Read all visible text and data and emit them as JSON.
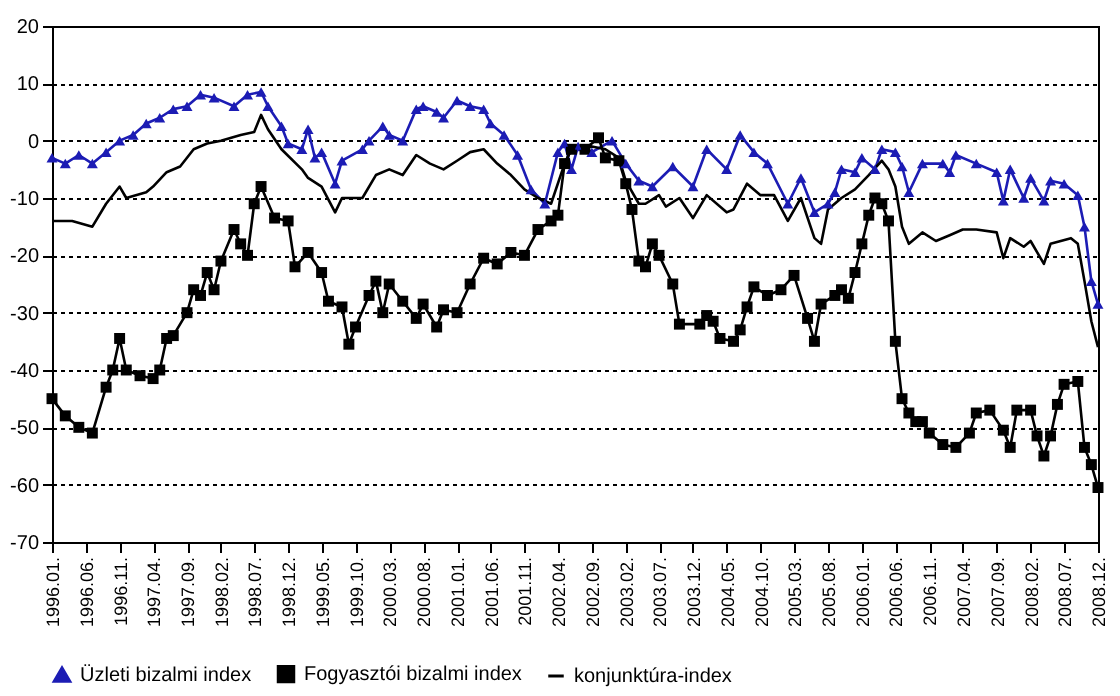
{
  "chart_data": {
    "type": "line",
    "ylim": [
      -70,
      20
    ],
    "yticks": [
      -70,
      -60,
      -50,
      -40,
      -30,
      -20,
      -10,
      0,
      10,
      20
    ],
    "xlim": [
      "1996-01",
      "2008-12"
    ],
    "xticks": [
      {
        "value": "1996-01",
        "label": "1996.01."
      },
      {
        "value": "1996-06",
        "label": "1996.06."
      },
      {
        "value": "1996-11",
        "label": "1996.11."
      },
      {
        "value": "1997-04",
        "label": "1997.04."
      },
      {
        "value": "1997-09",
        "label": "1997.09."
      },
      {
        "value": "1998-02",
        "label": "1998.02."
      },
      {
        "value": "1998-07",
        "label": "1998.07."
      },
      {
        "value": "1998-12",
        "label": "1998.12."
      },
      {
        "value": "1999-05",
        "label": "1999.05."
      },
      {
        "value": "1999-10",
        "label": "1999.10."
      },
      {
        "value": "2000-03",
        "label": "2000.03."
      },
      {
        "value": "2000-08",
        "label": "2000.08."
      },
      {
        "value": "2001-01",
        "label": "2001.01."
      },
      {
        "value": "2001-06",
        "label": "2001.06."
      },
      {
        "value": "2001-11",
        "label": "2001.11."
      },
      {
        "value": "2002-04",
        "label": "2002.04."
      },
      {
        "value": "2002-09",
        "label": "2002.09."
      },
      {
        "value": "2003-02",
        "label": "2003.02."
      },
      {
        "value": "2003-07",
        "label": "2003.07."
      },
      {
        "value": "2003-12",
        "label": "2003.12."
      },
      {
        "value": "2004-05",
        "label": "2004.05."
      },
      {
        "value": "2004-10",
        "label": "2004.10."
      },
      {
        "value": "2005-03",
        "label": "2005.03."
      },
      {
        "value": "2005-08",
        "label": "2005.08."
      },
      {
        "value": "2006-01",
        "label": "2006.01."
      },
      {
        "value": "2006-06",
        "label": "2006.06."
      },
      {
        "value": "2006-11",
        "label": "2006.11."
      },
      {
        "value": "2007-04",
        "label": "2007.04."
      },
      {
        "value": "2007-09",
        "label": "2007.09."
      },
      {
        "value": "2008-02",
        "label": "2008.02."
      },
      {
        "value": "2008-07",
        "label": "2008.07."
      },
      {
        "value": "2008-12",
        "label": "2008.12."
      }
    ],
    "grid": "y",
    "legend": "bottom",
    "line_style": "solid",
    "series": [
      {
        "name": "Üzleti bizalmi index",
        "color": "#1c1cb4",
        "marker": "triangle",
        "x": [
          "1996-01",
          "1996-03",
          "1996-05",
          "1996-07",
          "1996-09",
          "1996-11",
          "1997-01",
          "1997-03",
          "1997-05",
          "1997-07",
          "1997-09",
          "1997-11",
          "1998-01",
          "1998-04",
          "1998-06",
          "1998-08",
          "1998-09",
          "1998-11",
          "1998-12",
          "1999-02",
          "1999-03",
          "1999-04",
          "1999-05",
          "1999-07",
          "1999-08",
          "1999-11",
          "1999-12",
          "2000-02",
          "2000-03",
          "2000-05",
          "2000-07",
          "2000-08",
          "2000-10",
          "2000-11",
          "2001-01",
          "2001-03",
          "2001-05",
          "2001-06",
          "2001-08",
          "2001-10",
          "2001-12",
          "2002-02",
          "2002-04",
          "2002-05",
          "2002-06",
          "2002-07",
          "2002-09",
          "2002-12",
          "2003-02",
          "2003-04",
          "2003-06",
          "2003-09",
          "2003-12",
          "2004-02",
          "2004-05",
          "2004-07",
          "2004-09",
          "2004-11",
          "2005-02",
          "2005-04",
          "2005-06",
          "2005-08",
          "2005-09",
          "2005-10",
          "2005-12",
          "2006-01",
          "2006-03",
          "2006-04",
          "2006-06",
          "2006-07",
          "2006-08",
          "2006-10",
          "2007-01",
          "2007-02",
          "2007-03",
          "2007-06",
          "2007-09",
          "2007-10",
          "2007-11",
          "2008-01",
          "2008-02",
          "2008-04",
          "2008-05",
          "2008-07",
          "2008-09",
          "2008-10",
          "2008-11",
          "2008-12"
        ],
        "values": [
          -3,
          -4,
          -2.5,
          -4,
          -2,
          0,
          1,
          3,
          4,
          5.5,
          6,
          8,
          7.5,
          6,
          8,
          8.5,
          6,
          2.5,
          -0.5,
          -1.5,
          2,
          -3,
          -2,
          -7.5,
          -3.5,
          -1.5,
          0,
          2.5,
          1,
          0,
          5.5,
          6,
          5,
          4,
          7,
          6,
          5.5,
          3,
          1,
          -2.5,
          -8.5,
          -11,
          -2,
          -0.5,
          -5,
          -1,
          -2,
          0,
          -4,
          -7,
          -8,
          -4.5,
          -8,
          -1.5,
          -5,
          1,
          -2,
          -4,
          -11,
          -6.5,
          -12.5,
          -11,
          -9,
          -5,
          -5.5,
          -3,
          -5,
          -1.5,
          -2,
          -4.5,
          -9,
          -4,
          -4,
          -5.5,
          -2.5,
          -4,
          -5.5,
          -10.5,
          -5,
          -10,
          -6.5,
          -10.5,
          -7,
          -7.5,
          -9.5,
          -15,
          -24.5,
          -28.5
        ]
      },
      {
        "name": "Fogyasztói bizalmi index",
        "color": "#000000",
        "marker": "square",
        "x": [
          "1996-01",
          "1996-03",
          "1996-05",
          "1996-07",
          "1996-09",
          "1996-10",
          "1996-11",
          "1996-12",
          "1997-02",
          "1997-04",
          "1997-05",
          "1997-06",
          "1997-07",
          "1997-09",
          "1997-10",
          "1997-11",
          "1997-12",
          "1998-01",
          "1998-02",
          "1998-04",
          "1998-05",
          "1998-06",
          "1998-07",
          "1998-08",
          "1998-10",
          "1998-12",
          "1999-01",
          "1999-03",
          "1999-05",
          "1999-06",
          "1999-08",
          "1999-09",
          "1999-10",
          "1999-12",
          "2000-01",
          "2000-02",
          "2000-03",
          "2000-05",
          "2000-07",
          "2000-08",
          "2000-10",
          "2000-11",
          "2001-01",
          "2001-03",
          "2001-05",
          "2001-07",
          "2001-09",
          "2001-11",
          "2002-01",
          "2002-03",
          "2002-04",
          "2002-05",
          "2002-06",
          "2002-08",
          "2002-10",
          "2002-11",
          "2003-01",
          "2003-02",
          "2003-03",
          "2003-04",
          "2003-05",
          "2003-06",
          "2003-07",
          "2003-09",
          "2003-10",
          "2004-01",
          "2004-02",
          "2004-03",
          "2004-04",
          "2004-06",
          "2004-07",
          "2004-08",
          "2004-09",
          "2004-11",
          "2005-01",
          "2005-03",
          "2005-05",
          "2005-06",
          "2005-07",
          "2005-09",
          "2005-10",
          "2005-11",
          "2005-12",
          "2006-01",
          "2006-02",
          "2006-03",
          "2006-04",
          "2006-05",
          "2006-06",
          "2006-07",
          "2006-08",
          "2006-09",
          "2006-10",
          "2006-11",
          "2007-01",
          "2007-03",
          "2007-05",
          "2007-06",
          "2007-08",
          "2007-10",
          "2007-11",
          "2007-12",
          "2008-02",
          "2008-03",
          "2008-04",
          "2008-05",
          "2008-06",
          "2008-07",
          "2008-09",
          "2008-10",
          "2008-11",
          "2008-12"
        ],
        "values": [
          -45,
          -48,
          -50,
          -51,
          -43,
          -40,
          -34.5,
          -40,
          -41,
          -41.5,
          -40,
          -34.5,
          -34,
          -30,
          -26,
          -27,
          -23,
          -26,
          -21,
          -15.5,
          -18,
          -20,
          -11,
          -8,
          -13.5,
          -14,
          -22,
          -19.5,
          -23,
          -28,
          -29,
          -35.5,
          -32.5,
          -27,
          -24.5,
          -30,
          -25,
          -28,
          -31,
          -28.5,
          -32.5,
          -29.5,
          -30,
          -25,
          -20.5,
          -21.5,
          -19.5,
          -20,
          -15.5,
          -14,
          -13,
          -4,
          -1.5,
          -1.5,
          0.5,
          -3,
          -3.5,
          -7.5,
          -12,
          -21,
          -22,
          -18,
          -20,
          -25,
          -32,
          -32,
          -30.5,
          -31.5,
          -34.5,
          -35,
          -33,
          -29,
          -25.5,
          -27,
          -26,
          -23.5,
          -31,
          -35,
          -28.5,
          -27,
          -26,
          -27.5,
          -23,
          -18,
          -13,
          -10,
          -11,
          -14,
          -35,
          -45,
          -47.5,
          -49,
          -49,
          -51,
          -53,
          -53.5,
          -51,
          -47.5,
          -47,
          -50.5,
          -53.5,
          -47,
          -47,
          -51.5,
          -55,
          -51.5,
          -46,
          -42.5,
          -42,
          -53.5,
          -56.5,
          -60.5
        ]
      },
      {
        "name": "konjunktúra-index",
        "color": "#000000",
        "marker": "none",
        "x": [
          "1996-01",
          "1996-04",
          "1996-07",
          "1996-09",
          "1996-11",
          "1996-12",
          "1997-03",
          "1997-04",
          "1997-06",
          "1997-08",
          "1997-10",
          "1997-12",
          "1998-02",
          "1998-05",
          "1998-07",
          "1998-08",
          "1998-09",
          "1998-11",
          "1999-02",
          "1999-03",
          "1999-05",
          "1999-07",
          "1999-08",
          "1999-11",
          "2000-01",
          "2000-03",
          "2000-05",
          "2000-07",
          "2000-09",
          "2000-11",
          "2001-01",
          "2001-03",
          "2001-05",
          "2001-07",
          "2001-09",
          "2001-11",
          "2002-01",
          "2002-03",
          "2002-05",
          "2002-06",
          "2002-09",
          "2002-11",
          "2003-01",
          "2003-02",
          "2003-04",
          "2003-05",
          "2003-07",
          "2003-08",
          "2003-10",
          "2003-12",
          "2004-02",
          "2004-05",
          "2004-06",
          "2004-08",
          "2004-10",
          "2004-12",
          "2005-02",
          "2005-04",
          "2005-06",
          "2005-07",
          "2005-08",
          "2005-10",
          "2005-12",
          "2006-02",
          "2006-04",
          "2006-05",
          "2006-06",
          "2006-07",
          "2006-08",
          "2006-10",
          "2006-12",
          "2007-02",
          "2007-04",
          "2007-06",
          "2007-09",
          "2007-10",
          "2007-11",
          "2008-01",
          "2008-02",
          "2008-04",
          "2008-05",
          "2008-08",
          "2008-09",
          "2008-10",
          "2008-11",
          "2008-12"
        ],
        "values": [
          -14,
          -14,
          -15,
          -11,
          -8,
          -10,
          -9,
          -8,
          -5.5,
          -4.5,
          -1.5,
          -0.5,
          0,
          1,
          1.5,
          4.5,
          2,
          -1.5,
          -5,
          -6.5,
          -8,
          -12.5,
          -10,
          -10,
          -6,
          -5,
          -6,
          -2.5,
          -4,
          -5,
          -3.5,
          -2,
          -1.5,
          -4,
          -6,
          -8.5,
          -10,
          -11,
          -4,
          -1.5,
          -1,
          -1.5,
          -3,
          -7,
          -11,
          -11,
          -9.5,
          -11.5,
          -10,
          -13.5,
          -9.5,
          -12.5,
          -12,
          -7.5,
          -9.5,
          -9.5,
          -14,
          -10,
          -17,
          -18,
          -12,
          -10,
          -8.5,
          -6,
          -3.5,
          -5,
          -8,
          -15,
          -18,
          -16,
          -17.5,
          -16.5,
          -15.5,
          -15.5,
          -16,
          -20.5,
          -17,
          -18.5,
          -17.5,
          -21.5,
          -18,
          -17,
          -18,
          -24.5,
          -31.5,
          -36
        ]
      }
    ]
  }
}
